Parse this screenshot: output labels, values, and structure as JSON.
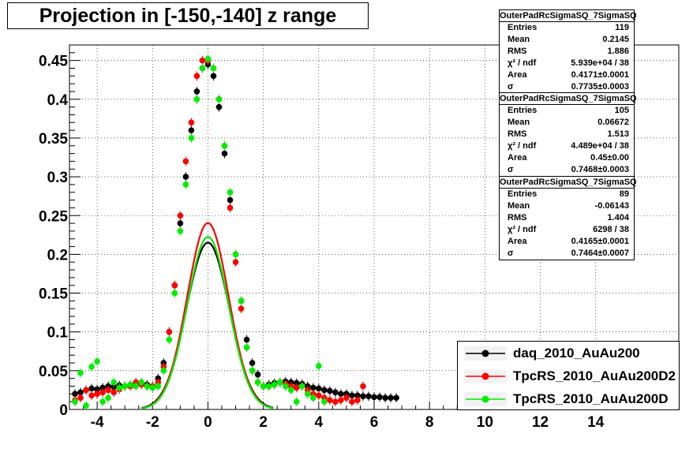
{
  "title": "Projection in [-150,-140] z range",
  "stats": [
    {
      "name": "OuterPadRcSigmaSQ_7SigmaSQ",
      "rows": [
        {
          "label": "Entries",
          "value": "119"
        },
        {
          "label": "Mean",
          "value": "0.2145"
        },
        {
          "label": "RMS",
          "value": "1.886"
        },
        {
          "label": "χ² / ndf",
          "value": "5.939e+04 / 38"
        },
        {
          "label": "Area",
          "value": "0.4171±0.0001"
        },
        {
          "label": "σ",
          "value": "0.7735±0.0003"
        }
      ]
    },
    {
      "name": "OuterPadRcSigmaSQ_7SigmaSQ",
      "rows": [
        {
          "label": "Entries",
          "value": "105"
        },
        {
          "label": "Mean",
          "value": "0.06672"
        },
        {
          "label": "RMS",
          "value": "1.513"
        },
        {
          "label": "χ² / ndf",
          "value": "4.489e+04 / 38"
        },
        {
          "label": "Area",
          "value": "0.45±0.00"
        },
        {
          "label": "σ",
          "value": "0.7468±0.0003"
        }
      ]
    },
    {
      "name": "OuterPadRcSigmaSQ_7SigmaSQ",
      "rows": [
        {
          "label": "Entries",
          "value": "89"
        },
        {
          "label": "Mean",
          "value": "-0.06143"
        },
        {
          "label": "RMS",
          "value": "1.404"
        },
        {
          "label": "χ² / ndf",
          "value": "6298 / 38"
        },
        {
          "label": "Area",
          "value": "0.4165±0.0001"
        },
        {
          "label": "σ",
          "value": "0.7464±0.0007"
        }
      ]
    }
  ],
  "legend": [
    {
      "label": "daq_2010_AuAu200",
      "color": "#000000"
    },
    {
      "label": "TpcRS_2010_AuAu200D2",
      "color": "#ff0000"
    },
    {
      "label": "TpcRS_2010_AuAu200D",
      "color": "#00ee00"
    }
  ],
  "chart_data": {
    "type": "scatter",
    "title": "Projection in [-150,-140] z range",
    "xlim": [
      -5,
      17
    ],
    "ylim": [
      0,
      0.47
    ],
    "x_ticks": [
      "-4",
      "-2",
      "0",
      "2",
      "4",
      "6",
      "8",
      "10",
      "12",
      "14"
    ],
    "x_tick_values": [
      -4,
      -2,
      0,
      2,
      4,
      6,
      8,
      10,
      12,
      14
    ],
    "y_ticks": [
      "0",
      "0.05",
      "0.1",
      "0.15",
      "0.2",
      "0.25",
      "0.3",
      "0.35",
      "0.4",
      "0.45"
    ],
    "y_tick_values": [
      0,
      0.05,
      0.1,
      0.15,
      0.2,
      0.25,
      0.3,
      0.35,
      0.4,
      0.45
    ],
    "grid": true,
    "legend_position": "bottom-right",
    "series": [
      {
        "name": "daq_2010_AuAu200",
        "color": "#000000",
        "fit_area": 0.4171,
        "fit_sigma": 0.7735,
        "x": [
          -4.8,
          -4.6,
          -4.4,
          -4.2,
          -4.0,
          -3.8,
          -3.6,
          -3.4,
          -3.2,
          -3.0,
          -2.8,
          -2.6,
          -2.4,
          -2.2,
          -2.0,
          -1.8,
          -1.6,
          -1.4,
          -1.2,
          -1.0,
          -0.8,
          -0.6,
          -0.4,
          -0.2,
          0.0,
          0.2,
          0.4,
          0.6,
          0.8,
          1.0,
          1.2,
          1.4,
          1.6,
          1.8,
          2.0,
          2.2,
          2.4,
          2.6,
          2.8,
          3.0,
          3.2,
          3.4,
          3.6,
          3.8,
          4.0,
          4.2,
          4.4,
          4.6,
          4.8,
          5.0,
          5.2,
          5.4,
          5.6,
          5.8,
          6.0,
          6.2,
          6.4,
          6.6,
          6.8
        ],
        "y": [
          0.02,
          0.022,
          0.025,
          0.027,
          0.026,
          0.028,
          0.03,
          0.029,
          0.031,
          0.03,
          0.032,
          0.033,
          0.034,
          0.032,
          0.03,
          0.04,
          0.06,
          0.1,
          0.16,
          0.24,
          0.3,
          0.36,
          0.41,
          0.44,
          0.445,
          0.43,
          0.39,
          0.33,
          0.27,
          0.2,
          0.14,
          0.09,
          0.06,
          0.045,
          0.03,
          0.032,
          0.034,
          0.035,
          0.036,
          0.035,
          0.034,
          0.033,
          0.03,
          0.028,
          0.027,
          0.025,
          0.024,
          0.022,
          0.02,
          0.02,
          0.018,
          0.018,
          0.017,
          0.017,
          0.016,
          0.016,
          0.015,
          0.015,
          0.015
        ]
      },
      {
        "name": "TpcRS_2010_AuAu200D2",
        "color": "#ff0000",
        "fit_area": 0.45,
        "fit_sigma": 0.7468,
        "x": [
          -4.8,
          -4.6,
          -4.4,
          -4.2,
          -4.0,
          -3.8,
          -3.6,
          -3.4,
          -3.2,
          -3.0,
          -2.8,
          -2.6,
          -2.4,
          -2.2,
          -2.0,
          -1.8,
          -1.6,
          -1.4,
          -1.2,
          -1.0,
          -0.8,
          -0.6,
          -0.4,
          -0.2,
          0.0,
          0.2,
          0.4,
          0.6,
          0.8,
          1.0,
          1.2,
          1.4,
          1.6,
          1.8,
          2.0,
          2.2,
          2.4,
          2.6,
          2.8,
          3.0,
          3.2,
          3.4,
          3.6,
          3.8,
          4.0,
          4.2,
          4.4,
          4.6,
          4.8,
          5.0,
          5.2,
          5.4,
          5.6
        ],
        "y": [
          0.012,
          0.015,
          0.025,
          0.018,
          0.02,
          0.022,
          0.025,
          0.022,
          0.026,
          0.03,
          0.03,
          0.035,
          0.032,
          0.03,
          0.03,
          0.035,
          0.055,
          0.1,
          0.16,
          0.25,
          0.32,
          0.37,
          0.43,
          0.45,
          0.45,
          0.44,
          0.4,
          0.34,
          0.26,
          0.19,
          0.13,
          0.08,
          0.05,
          0.035,
          0.03,
          0.03,
          0.032,
          0.035,
          0.033,
          0.03,
          0.028,
          0.03,
          0.025,
          0.02,
          0.018,
          0.015,
          0.012,
          0.01,
          0.012,
          0.015,
          0.01,
          0.012,
          0.03
        ]
      },
      {
        "name": "TpcRS_2010_AuAu200D",
        "color": "#00ee00",
        "fit_area": 0.4165,
        "fit_sigma": 0.7464,
        "x": [
          -4.8,
          -4.6,
          -4.4,
          -4.2,
          -4.0,
          -3.8,
          -3.6,
          -3.4,
          -3.2,
          -3.0,
          -2.8,
          -2.6,
          -2.4,
          -2.2,
          -2.0,
          -1.8,
          -1.6,
          -1.4,
          -1.2,
          -1.0,
          -0.8,
          -0.6,
          -0.4,
          -0.2,
          0.0,
          0.2,
          0.4,
          0.6,
          0.8,
          1.0,
          1.2,
          1.4,
          1.6,
          1.8,
          2.0,
          2.2,
          2.4,
          2.6,
          2.8,
          3.0,
          3.2,
          3.4,
          3.6,
          3.8,
          4.0,
          4.2
        ],
        "y": [
          0.01,
          0.047,
          0.005,
          0.055,
          0.062,
          0.01,
          0.015,
          0.035,
          0.028,
          0.03,
          0.032,
          0.03,
          0.035,
          0.03,
          0.028,
          0.03,
          0.05,
          0.09,
          0.15,
          0.23,
          0.29,
          0.35,
          0.4,
          0.44,
          0.452,
          0.44,
          0.4,
          0.34,
          0.28,
          0.2,
          0.14,
          0.08,
          0.05,
          0.035,
          0.03,
          0.03,
          0.032,
          0.035,
          0.03,
          0.025,
          0.01,
          0.03,
          0.02,
          0.015,
          0.056,
          0.01
        ]
      }
    ]
  }
}
